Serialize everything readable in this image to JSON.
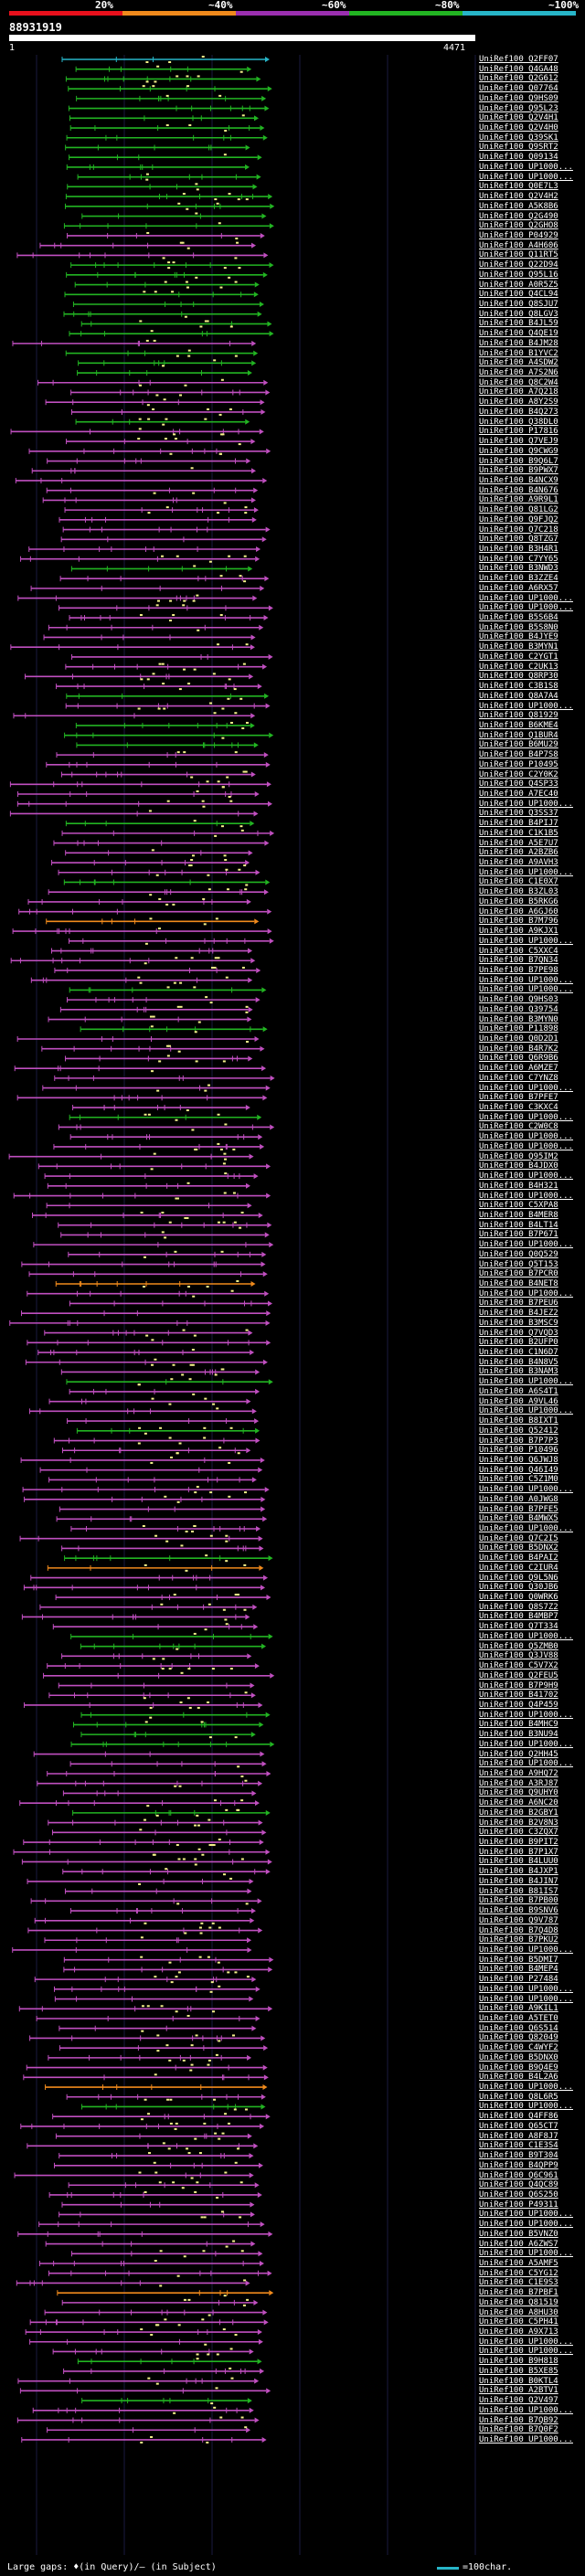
{
  "legend": {
    "segments": [
      {
        "label": "20%",
        "color": "#e8101c"
      },
      {
        "label": "~40%",
        "color": "#f08a1c"
      },
      {
        "label": "~60%",
        "color": "#9b2fb0"
      },
      {
        "label": "~80%",
        "color": "#22b422"
      },
      {
        "label": "~100%",
        "color": "#27b5c8"
      }
    ]
  },
  "query": {
    "id": "88931919",
    "start": "1",
    "end": "4471"
  },
  "colors": {
    "cyan": "#27b5c8",
    "green": "#22b422",
    "magenta": "#c04fc0",
    "orange": "#f08a1c",
    "highlight": "#f5f28a"
  },
  "hits": [
    {
      "id": "UniRef100_Q2FF07",
      "c": "cyan"
    },
    {
      "id": "UniRef100_Q4GA48",
      "c": "green"
    },
    {
      "id": "UniRef100_Q2G612",
      "c": "green"
    },
    {
      "id": "UniRef100_Q07764",
      "c": "green"
    },
    {
      "id": "UniRef100_Q9HS09",
      "c": "green"
    },
    {
      "id": "UniRef100_Q95L23",
      "c": "green"
    },
    {
      "id": "UniRef100_Q2V4H1",
      "c": "green"
    },
    {
      "id": "UniRef100_Q2V4H0",
      "c": "green"
    },
    {
      "id": "UniRef100_Q39SK1",
      "c": "green"
    },
    {
      "id": "UniRef100_Q9SRT2",
      "c": "green"
    },
    {
      "id": "UniRef100_Q09134",
      "c": "green"
    },
    {
      "id": "UniRef100_UP1000...",
      "c": "green"
    },
    {
      "id": "UniRef100_UP1000...",
      "c": "green"
    },
    {
      "id": "UniRef100_Q0E7L3",
      "c": "green"
    },
    {
      "id": "UniRef100_Q2V4H2",
      "c": "green"
    },
    {
      "id": "UniRef100_A5K8B6",
      "c": "green"
    },
    {
      "id": "UniRef100_Q2G490",
      "c": "green"
    },
    {
      "id": "UniRef100_Q2GHO8",
      "c": "green"
    },
    {
      "id": "UniRef100_P04929",
      "c": "magenta"
    },
    {
      "id": "UniRef100_A4H606",
      "c": "magenta"
    },
    {
      "id": "UniRef100_Q11RT5",
      "c": "magenta"
    },
    {
      "id": "UniRef100_Q22D94",
      "c": "green"
    },
    {
      "id": "UniRef100_Q95L16",
      "c": "green"
    },
    {
      "id": "UniRef100_A0R5Z5",
      "c": "green"
    },
    {
      "id": "UniRef100_Q4CL94",
      "c": "green"
    },
    {
      "id": "UniRef100_Q8SJU7",
      "c": "green"
    },
    {
      "id": "UniRef100_Q8LGV3",
      "c": "green"
    },
    {
      "id": "UniRef100_B4JL59",
      "c": "green"
    },
    {
      "id": "UniRef100_Q4QE19",
      "c": "green"
    },
    {
      "id": "UniRef100_B4JM28",
      "c": "magenta"
    },
    {
      "id": "UniRef100_B1YVC2",
      "c": "green"
    },
    {
      "id": "UniRef100_A4SDW2",
      "c": "green"
    },
    {
      "id": "UniRef100_A7S2N6",
      "c": "green"
    },
    {
      "id": "UniRef100_Q8C2W4",
      "c": "magenta"
    },
    {
      "id": "UniRef100_A7Q218",
      "c": "magenta"
    },
    {
      "id": "UniRef100_A8Y2S9",
      "c": "magenta"
    },
    {
      "id": "UniRef100_B4Q273",
      "c": "magenta"
    },
    {
      "id": "UniRef100_Q38DL0",
      "c": "green"
    },
    {
      "id": "UniRef100_P17816",
      "c": "magenta"
    },
    {
      "id": "UniRef100_Q7VEJ9",
      "c": "magenta"
    },
    {
      "id": "UniRef100_Q9CWG9",
      "c": "magenta"
    },
    {
      "id": "UniRef100_B9Q6L7",
      "c": "magenta"
    },
    {
      "id": "UniRef100_B9PWX7",
      "c": "magenta"
    },
    {
      "id": "UniRef100_B4NCX9",
      "c": "magenta"
    },
    {
      "id": "UniRef100_B4N676",
      "c": "magenta"
    },
    {
      "id": "UniRef100_A9R9L1",
      "c": "magenta"
    },
    {
      "id": "UniRef100_Q81LG2",
      "c": "magenta"
    },
    {
      "id": "UniRef100_Q9FJQ2",
      "c": "magenta"
    },
    {
      "id": "UniRef100_Q7C218",
      "c": "magenta"
    },
    {
      "id": "UniRef100_Q8TZG7",
      "c": "magenta"
    },
    {
      "id": "UniRef100_B3H4R1",
      "c": "magenta"
    },
    {
      "id": "UniRef100_C7YY65",
      "c": "magenta"
    },
    {
      "id": "UniRef100_B3NWD3",
      "c": "green"
    },
    {
      "id": "UniRef100_B3ZZE4",
      "c": "magenta"
    },
    {
      "id": "UniRef100_A6RX57",
      "c": "magenta"
    },
    {
      "id": "UniRef100_UP1000...",
      "c": "magenta"
    },
    {
      "id": "UniRef100_UP1000...",
      "c": "magenta"
    },
    {
      "id": "UniRef100_B5S6B4",
      "c": "magenta"
    },
    {
      "id": "UniRef100_B5S8N0",
      "c": "magenta"
    },
    {
      "id": "UniRef100_B4JYE9",
      "c": "magenta"
    },
    {
      "id": "UniRef100_B3MYN1",
      "c": "magenta"
    },
    {
      "id": "UniRef100_C2YGT1",
      "c": "magenta"
    },
    {
      "id": "UniRef100_C2UK13",
      "c": "magenta"
    },
    {
      "id": "UniRef100_Q8RP30",
      "c": "magenta"
    },
    {
      "id": "UniRef100_C3B1S8",
      "c": "magenta"
    },
    {
      "id": "UniRef100_Q8A7A4",
      "c": "green"
    },
    {
      "id": "UniRef100_UP1000...",
      "c": "magenta"
    },
    {
      "id": "UniRef100_Q81929",
      "c": "magenta"
    },
    {
      "id": "UniRef100_B6KME4",
      "c": "green"
    },
    {
      "id": "UniRef100_Q1BUR4",
      "c": "green"
    },
    {
      "id": "UniRef100_B6MU29",
      "c": "green"
    },
    {
      "id": "UniRef100_B4P7S8",
      "c": "magenta"
    },
    {
      "id": "UniRef100_P10495",
      "c": "magenta"
    },
    {
      "id": "UniRef100_C2Y0K2",
      "c": "magenta"
    },
    {
      "id": "UniRef100_Q4SP33",
      "c": "magenta"
    },
    {
      "id": "UniRef100_A7EC40",
      "c": "magenta"
    },
    {
      "id": "UniRef100_UP1000...",
      "c": "magenta"
    },
    {
      "id": "UniRef100_Q3SS37",
      "c": "magenta"
    },
    {
      "id": "UniRef100_B4PIJ7",
      "c": "green"
    },
    {
      "id": "UniRef100_C1K1B5",
      "c": "magenta"
    },
    {
      "id": "UniRef100_A5E7U7",
      "c": "magenta"
    },
    {
      "id": "UniRef100_A2BZB6",
      "c": "magenta"
    },
    {
      "id": "UniRef100_A9AVH3",
      "c": "magenta"
    },
    {
      "id": "UniRef100_UP1000...",
      "c": "magenta"
    },
    {
      "id": "UniRef100_C1E0X7",
      "c": "green"
    },
    {
      "id": "UniRef100_B3ZL03",
      "c": "magenta"
    },
    {
      "id": "UniRef100_B5RKG6",
      "c": "magenta"
    },
    {
      "id": "UniRef100_A6GJ60",
      "c": "magenta"
    },
    {
      "id": "UniRef100_B7M796",
      "c": "orange"
    },
    {
      "id": "UniRef100_A9KJX1",
      "c": "magenta"
    },
    {
      "id": "UniRef100_UP1000...",
      "c": "magenta"
    },
    {
      "id": "UniRef100_C5XXC4",
      "c": "magenta"
    },
    {
      "id": "UniRef100_B7QN34",
      "c": "magenta"
    },
    {
      "id": "UniRef100_B7PE98",
      "c": "magenta"
    },
    {
      "id": "UniRef100_UP1000...",
      "c": "magenta"
    },
    {
      "id": "UniRef100_UP1000...",
      "c": "green"
    },
    {
      "id": "UniRef100_Q9HS03",
      "c": "magenta"
    },
    {
      "id": "UniRef100_Q39754",
      "c": "magenta"
    },
    {
      "id": "UniRef100_B3MYN0",
      "c": "magenta"
    },
    {
      "id": "UniRef100_P11898",
      "c": "green"
    },
    {
      "id": "UniRef100_Q0D2D1",
      "c": "magenta"
    },
    {
      "id": "UniRef100_B4R7K2",
      "c": "magenta"
    },
    {
      "id": "UniRef100_Q6R9B6",
      "c": "magenta"
    },
    {
      "id": "UniRef100_A6MZE7",
      "c": "magenta"
    },
    {
      "id": "UniRef100_C7YNZ8",
      "c": "magenta"
    },
    {
      "id": "UniRef100_UP1000...",
      "c": "magenta"
    },
    {
      "id": "UniRef100_B7PFE7",
      "c": "magenta"
    },
    {
      "id": "UniRef100_C3KXC4",
      "c": "magenta"
    },
    {
      "id": "UniRef100_UP1000...",
      "c": "green"
    },
    {
      "id": "UniRef100_C2W0C8",
      "c": "magenta"
    },
    {
      "id": "UniRef100_UP1000...",
      "c": "magenta"
    },
    {
      "id": "UniRef100_UP1000...",
      "c": "magenta"
    },
    {
      "id": "UniRef100_Q95IM2",
      "c": "magenta"
    },
    {
      "id": "UniRef100_B4JDX0",
      "c": "magenta"
    },
    {
      "id": "UniRef100_UP1000...",
      "c": "magenta"
    },
    {
      "id": "UniRef100_B4H321",
      "c": "magenta"
    },
    {
      "id": "UniRef100_UP1000...",
      "c": "magenta"
    },
    {
      "id": "UniRef100_C5XPA8",
      "c": "magenta"
    },
    {
      "id": "UniRef100_B4MER8",
      "c": "magenta"
    },
    {
      "id": "UniRef100_B4LT14",
      "c": "magenta"
    },
    {
      "id": "UniRef100_B7P671",
      "c": "magenta"
    },
    {
      "id": "UniRef100_UP1000...",
      "c": "magenta"
    },
    {
      "id": "UniRef100_Q0Q529",
      "c": "magenta"
    },
    {
      "id": "UniRef100_Q5T153",
      "c": "magenta"
    },
    {
      "id": "UniRef100_B7PCR0",
      "c": "magenta"
    },
    {
      "id": "UniRef100_B4NET8",
      "c": "orange"
    },
    {
      "id": "UniRef100_UP1000...",
      "c": "magenta"
    },
    {
      "id": "UniRef100_B7PEU6",
      "c": "magenta"
    },
    {
      "id": "UniRef100_B4JEZ2",
      "c": "magenta"
    },
    {
      "id": "UniRef100_B3MSC9",
      "c": "magenta"
    },
    {
      "id": "UniRef100_Q7VQD3",
      "c": "magenta"
    },
    {
      "id": "UniRef100_B2UFP0",
      "c": "magenta"
    },
    {
      "id": "UniRef100_C1N6D7",
      "c": "magenta"
    },
    {
      "id": "UniRef100_B4N8V5",
      "c": "magenta"
    },
    {
      "id": "UniRef100_B3NAM3",
      "c": "magenta"
    },
    {
      "id": "UniRef100_UP1000...",
      "c": "green"
    },
    {
      "id": "UniRef100_A6S4T1",
      "c": "magenta"
    },
    {
      "id": "UniRef100_A9VL46",
      "c": "magenta"
    },
    {
      "id": "UniRef100_UP1000...",
      "c": "magenta"
    },
    {
      "id": "UniRef100_B8IXT1",
      "c": "magenta"
    },
    {
      "id": "UniRef100_Q52412",
      "c": "green"
    },
    {
      "id": "UniRef100_B7P7P3",
      "c": "magenta"
    },
    {
      "id": "UniRef100_P10496",
      "c": "magenta"
    },
    {
      "id": "UniRef100_Q6JWJ8",
      "c": "magenta"
    },
    {
      "id": "UniRef100_Q46I49",
      "c": "magenta"
    },
    {
      "id": "UniRef100_C5Z1M0",
      "c": "magenta"
    },
    {
      "id": "UniRef100_UP1000...",
      "c": "magenta"
    },
    {
      "id": "UniRef100_A0JWG8",
      "c": "magenta"
    },
    {
      "id": "UniRef100_B7PFE5",
      "c": "magenta"
    },
    {
      "id": "UniRef100_B4MWX5",
      "c": "magenta"
    },
    {
      "id": "UniRef100_UP1000...",
      "c": "magenta"
    },
    {
      "id": "UniRef100_Q7C2I5",
      "c": "magenta"
    },
    {
      "id": "UniRef100_B5DNX2",
      "c": "magenta"
    },
    {
      "id": "UniRef100_B4PAI2",
      "c": "green"
    },
    {
      "id": "UniRef100_C2IUR4",
      "c": "orange"
    },
    {
      "id": "UniRef100_Q9L5N6",
      "c": "magenta"
    },
    {
      "id": "UniRef100_Q30JB6",
      "c": "magenta"
    },
    {
      "id": "UniRef100_Q0WRK6",
      "c": "magenta"
    },
    {
      "id": "UniRef100_Q8S7Z2",
      "c": "magenta"
    },
    {
      "id": "UniRef100_B4MBP7",
      "c": "magenta"
    },
    {
      "id": "UniRef100_Q7T334",
      "c": "magenta"
    },
    {
      "id": "UniRef100_UP1000...",
      "c": "green"
    },
    {
      "id": "UniRef100_Q5ZMB0",
      "c": "green"
    },
    {
      "id": "UniRef100_Q3JV88",
      "c": "magenta"
    },
    {
      "id": "UniRef100_C5V7X2",
      "c": "magenta"
    },
    {
      "id": "UniRef100_Q2FEU5",
      "c": "magenta"
    },
    {
      "id": "UniRef100_B7P9H9",
      "c": "magenta"
    },
    {
      "id": "UniRef100_B41702",
      "c": "magenta"
    },
    {
      "id": "UniRef100_Q4P459",
      "c": "magenta"
    },
    {
      "id": "UniRef100_UP1000...",
      "c": "green"
    },
    {
      "id": "UniRef100_B4MHC9",
      "c": "green"
    },
    {
      "id": "UniRef100_B3NU94",
      "c": "green"
    },
    {
      "id": "UniRef100_UP1000...",
      "c": "green"
    },
    {
      "id": "UniRef100_Q2HH45",
      "c": "magenta"
    },
    {
      "id": "UniRef100_UP1000...",
      "c": "magenta"
    },
    {
      "id": "UniRef100_A9HQ72",
      "c": "magenta"
    },
    {
      "id": "UniRef100_A3RJ87",
      "c": "magenta"
    },
    {
      "id": "UniRef100_Q9UHY0",
      "c": "magenta"
    },
    {
      "id": "UniRef100_A6NC20",
      "c": "magenta"
    },
    {
      "id": "UniRef100_B2GBY1",
      "c": "green"
    },
    {
      "id": "UniRef100_B2V8N3",
      "c": "magenta"
    },
    {
      "id": "UniRef100_C3ZQX7",
      "c": "magenta"
    },
    {
      "id": "UniRef100_B9PIT2",
      "c": "magenta"
    },
    {
      "id": "UniRef100_B7P1X7",
      "c": "magenta"
    },
    {
      "id": "UniRef100_B4LUU0",
      "c": "magenta"
    },
    {
      "id": "UniRef100_B4JXP1",
      "c": "magenta"
    },
    {
      "id": "UniRef100_B4JIN7",
      "c": "magenta"
    },
    {
      "id": "UniRef100_B81IS7",
      "c": "magenta"
    },
    {
      "id": "UniRef100_B7PB00",
      "c": "magenta"
    },
    {
      "id": "UniRef100_B9SNV6",
      "c": "magenta"
    },
    {
      "id": "UniRef100_Q9V787",
      "c": "magenta"
    },
    {
      "id": "UniRef100_B7Q4D8",
      "c": "magenta"
    },
    {
      "id": "UniRef100_B7PKU2",
      "c": "magenta"
    },
    {
      "id": "UniRef100_UP1000...",
      "c": "magenta"
    },
    {
      "id": "UniRef100_B5DMI7",
      "c": "magenta"
    },
    {
      "id": "UniRef100_B4MEP4",
      "c": "magenta"
    },
    {
      "id": "UniRef100_P27484",
      "c": "magenta"
    },
    {
      "id": "UniRef100_UP1000...",
      "c": "magenta"
    },
    {
      "id": "UniRef100_UP1000...",
      "c": "magenta"
    },
    {
      "id": "UniRef100_A9KIL1",
      "c": "magenta"
    },
    {
      "id": "UniRef100_A5TET0",
      "c": "magenta"
    },
    {
      "id": "UniRef100_Q6S514",
      "c": "magenta"
    },
    {
      "id": "UniRef100_Q82049",
      "c": "magenta"
    },
    {
      "id": "UniRef100_C4WYF2",
      "c": "magenta"
    },
    {
      "id": "UniRef100_B5DNX0",
      "c": "magenta"
    },
    {
      "id": "UniRef100_B9Q4E9",
      "c": "magenta"
    },
    {
      "id": "UniRef100_B4L2A6",
      "c": "magenta"
    },
    {
      "id": "UniRef100_UP1000...",
      "c": "orange"
    },
    {
      "id": "UniRef100_Q8L6R5",
      "c": "magenta"
    },
    {
      "id": "UniRef100_UP1000...",
      "c": "green"
    },
    {
      "id": "UniRef100_Q4FF86",
      "c": "magenta"
    },
    {
      "id": "UniRef100_Q65CT7",
      "c": "magenta"
    },
    {
      "id": "UniRef100_A8F8J7",
      "c": "magenta"
    },
    {
      "id": "UniRef100_C1E3S4",
      "c": "magenta"
    },
    {
      "id": "UniRef100_B9T304",
      "c": "magenta"
    },
    {
      "id": "UniRef100_B4QPP9",
      "c": "magenta"
    },
    {
      "id": "UniRef100_Q6C961",
      "c": "magenta"
    },
    {
      "id": "UniRef100_Q4QC89",
      "c": "magenta"
    },
    {
      "id": "UniRef100_Q6S250",
      "c": "magenta"
    },
    {
      "id": "UniRef100_P49311",
      "c": "magenta"
    },
    {
      "id": "UniRef100_UP1000...",
      "c": "magenta"
    },
    {
      "id": "UniRef100_UP1000...",
      "c": "magenta"
    },
    {
      "id": "UniRef100_B5VNZ0",
      "c": "magenta"
    },
    {
      "id": "UniRef100_A6ZWS7",
      "c": "magenta"
    },
    {
      "id": "UniRef100_UP1000...",
      "c": "magenta"
    },
    {
      "id": "UniRef100_A5AMF5",
      "c": "magenta"
    },
    {
      "id": "UniRef100_C5YG12",
      "c": "magenta"
    },
    {
      "id": "UniRef100_C1E9S3",
      "c": "magenta"
    },
    {
      "id": "UniRef100_B7PBF1",
      "c": "orange"
    },
    {
      "id": "UniRef100_Q81519",
      "c": "magenta"
    },
    {
      "id": "UniRef100_A8HU30",
      "c": "magenta"
    },
    {
      "id": "UniRef100_C5PH41",
      "c": "magenta"
    },
    {
      "id": "UniRef100_A9X713",
      "c": "magenta"
    },
    {
      "id": "UniRef100_UP1000...",
      "c": "magenta"
    },
    {
      "id": "UniRef100_UP1000...",
      "c": "magenta"
    },
    {
      "id": "UniRef100_B9H818",
      "c": "green"
    },
    {
      "id": "UniRef100_B5XE85",
      "c": "magenta"
    },
    {
      "id": "UniRef100_B0KTL4",
      "c": "magenta"
    },
    {
      "id": "UniRef100_A2BTV1",
      "c": "magenta"
    },
    {
      "id": "UniRef100_Q2V497",
      "c": "green"
    },
    {
      "id": "UniRef100_UP1000...",
      "c": "magenta"
    },
    {
      "id": "UniRef100_B7QB92",
      "c": "magenta"
    },
    {
      "id": "UniRef100_B7Q0F2",
      "c": "magenta"
    },
    {
      "id": "UniRef100_UP1000...",
      "c": "magenta"
    }
  ],
  "footer": {
    "gaps_text": "Large gaps: ♦(in Query)/‒ (in Subject)",
    "scale_text": "=100char."
  }
}
